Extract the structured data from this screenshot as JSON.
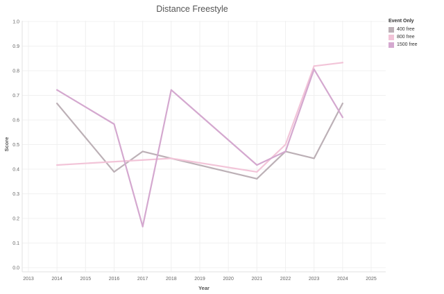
{
  "chart_data": {
    "type": "line",
    "title": "Distance Freestyle",
    "xlabel": "Year",
    "ylabel": "Score",
    "xlim": [
      2013,
      2025
    ],
    "ylim": [
      0.0,
      1.0
    ],
    "x_ticks": [
      "2013",
      "2014",
      "2015",
      "2016",
      "2017",
      "2018",
      "2019",
      "2020",
      "2021",
      "2022",
      "2023",
      "2024",
      "2025"
    ],
    "y_ticks": [
      "0.0",
      "0.1",
      "0.2",
      "0.3",
      "0.4",
      "0.5",
      "0.6",
      "0.7",
      "0.8",
      "0.9",
      "1.0"
    ],
    "legend_title": "Event Only",
    "legend_position": "top-right",
    "grid": true,
    "series": [
      {
        "name": "400 free",
        "color": "#bcb0b6",
        "x": [
          2014,
          2016,
          2017,
          2018,
          2021,
          2022,
          2023,
          2024
        ],
        "y": [
          0.667,
          0.389,
          0.472,
          0.444,
          0.361,
          0.472,
          0.444,
          0.667
        ]
      },
      {
        "name": "800 free",
        "color": "#f2c4d8",
        "x": [
          2014,
          2018,
          2021,
          2022,
          2023,
          2024
        ],
        "y": [
          0.417,
          0.444,
          0.389,
          0.5,
          0.819,
          0.833
        ]
      },
      {
        "name": "1500 free",
        "color": "#d4a8cf",
        "x": [
          2014,
          2016,
          2017,
          2018,
          2021,
          2022,
          2023,
          2024
        ],
        "y": [
          0.722,
          0.583,
          0.167,
          0.722,
          0.417,
          0.472,
          0.806,
          0.611
        ]
      }
    ]
  }
}
